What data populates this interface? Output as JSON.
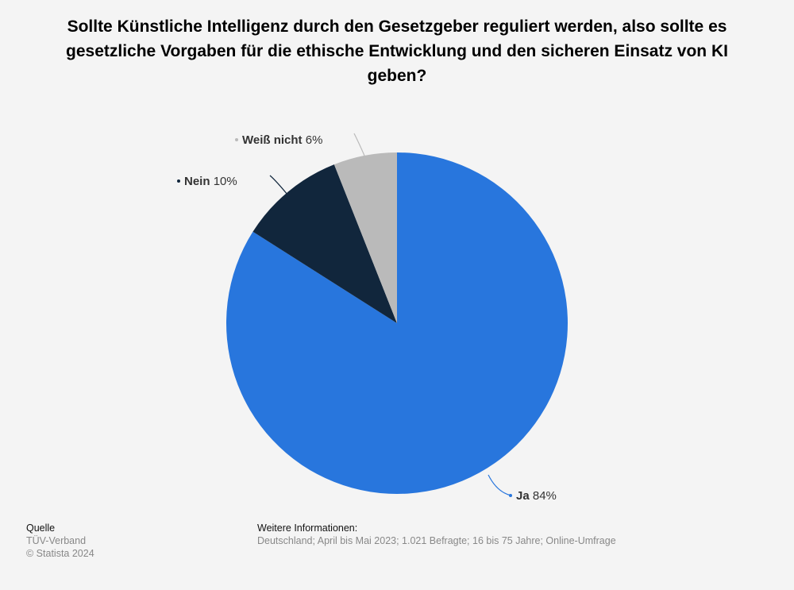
{
  "chart_data": {
    "type": "pie",
    "title": "Sollte Künstliche Intelligenz durch den Gesetzgeber reguliert werden, also sollte es gesetzliche Vorgaben für die ethische Entwicklung und den sicheren Einsatz von KI geben?",
    "slices": [
      {
        "label": "Ja",
        "value": 84,
        "display": "84%",
        "color": "#2876dd"
      },
      {
        "label": "Nein",
        "value": 10,
        "display": "10%",
        "color": "#11263c"
      },
      {
        "label": "Weiß nicht",
        "value": 6,
        "display": "6%",
        "color": "#bababa"
      }
    ],
    "start": "12 o'clock",
    "direction": "clockwise"
  },
  "footer": {
    "source_heading": "Quelle",
    "source_value": "TÜV-Verband",
    "copyright": "© Statista 2024",
    "info_heading": "Weitere Informationen:",
    "info_value": "Deutschland; April bis Mai 2023; 1.021 Befragte; 16 bis 75 Jahre; Online-Umfrage"
  }
}
